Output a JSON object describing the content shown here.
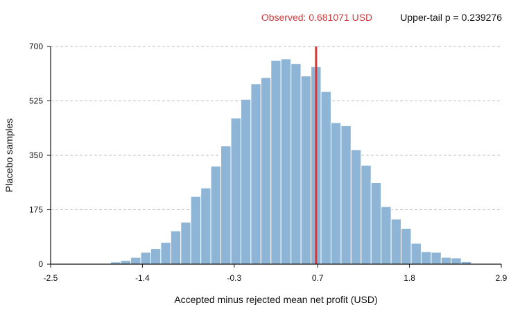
{
  "chart_data": {
    "type": "bar",
    "title": "",
    "xlabel": "Accepted minus rejected mean net profit (USD)",
    "ylabel": "Placebo samples",
    "xlim": [
      -2.5,
      2.9
    ],
    "ylim": [
      0,
      700
    ],
    "x_ticks": [
      "-2.5",
      "-1.4",
      "-0.3",
      "0.7",
      "1.8",
      "2.9"
    ],
    "y_ticks": [
      "0",
      "175",
      "350",
      "525",
      "700"
    ],
    "grid": "horizontal dashed",
    "bar_color": "#8fb5d6",
    "bin_edges": [
      -2.5,
      -2.38,
      -2.26,
      -2.14,
      -2.02,
      -1.9,
      -1.78,
      -1.66,
      -1.54,
      -1.42,
      -1.3,
      -1.18,
      -1.06,
      -0.94,
      -0.82,
      -0.7,
      -0.58,
      -0.46,
      -0.34,
      -0.22,
      -0.1,
      0.02,
      0.14,
      0.26,
      0.38,
      0.5,
      0.62,
      0.74,
      0.86,
      0.98,
      1.1,
      1.22,
      1.34,
      1.46,
      1.58,
      1.7,
      1.82,
      1.94,
      2.06,
      2.18,
      2.3,
      2.42,
      2.54,
      2.66,
      2.78,
      2.9
    ],
    "counts": [
      0,
      0,
      0,
      0,
      0,
      0,
      7,
      12,
      22,
      38,
      50,
      70,
      107,
      135,
      218,
      245,
      315,
      380,
      470,
      530,
      580,
      600,
      655,
      660,
      645,
      605,
      635,
      555,
      455,
      445,
      368,
      318,
      262,
      185,
      145,
      115,
      67,
      40,
      38,
      22,
      20,
      8,
      0,
      0,
      0
    ],
    "observed": {
      "value": 0.681071,
      "label": "Observed: 0.681071 USD",
      "color": "#d03a3a"
    },
    "p_value": {
      "value": 0.239276,
      "label": "Upper-tail p = 0.239276"
    }
  }
}
